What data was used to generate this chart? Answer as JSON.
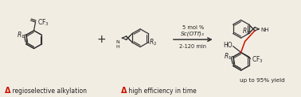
{
  "bg_color": "#f2ede3",
  "text_color_black": "#222222",
  "text_color_red": "#cc1100",
  "bond_color": "#333333",
  "red_bond_color": "#cc1100",
  "catalyst_line1": "5 mol %",
  "catalyst_line2": "Sc(OTf)₃",
  "time_label": "2-120 min",
  "yield_label": "up to 95% yield",
  "label1": " regioselective alkylation",
  "label2": " high efficiency in time"
}
